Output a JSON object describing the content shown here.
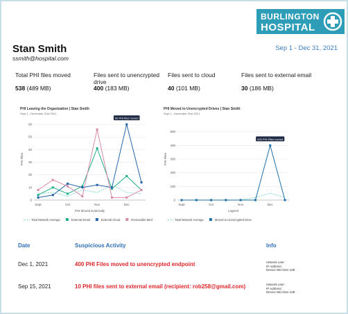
{
  "logo": {
    "line1": "BURLINGTON",
    "line2": "HOSPITAL"
  },
  "header": {
    "name": "Stan Smith",
    "email": "ssmith@hospital.com",
    "date_range": "Sep 1 - Dec 31, 2021"
  },
  "stats": [
    {
      "label": "Total PHI files moved",
      "count": 538,
      "size": "(489 MB)"
    },
    {
      "label": "Files sent to unencrypted drive",
      "count": 400,
      "size": "(183 MB)"
    },
    {
      "label": "Files sent to cloud",
      "count": 40,
      "size": "(101 MB)"
    },
    {
      "label": "Files sent to external email",
      "count": 30,
      "size": "(186 MB)"
    }
  ],
  "charts": [
    {
      "type": "line",
      "title": "PHI Leaving the Organization | Stan Smith",
      "subtitle": "Sept 1 - December 31st 2021",
      "y_label": "PHI Files",
      "x_label": "PHI Moved Externally",
      "annotation": "60 PHI files moved",
      "categories": [
        "Sept",
        null,
        "Oct",
        null,
        "Nov",
        null,
        "Dec",
        null
      ],
      "ylim": [
        0,
        65
      ],
      "yticks": [
        0,
        10,
        20,
        30,
        40,
        50,
        60
      ],
      "grid": true,
      "series": [
        {
          "name": "Total Network Average",
          "color": "#5fd3c0",
          "dashed": true,
          "values": [
            5,
            6,
            3,
            8,
            6,
            12,
            6,
            5
          ]
        },
        {
          "name": "External Email",
          "color": "#1fae8a",
          "values": [
            4,
            10,
            5,
            11,
            41,
            9,
            19,
            8
          ]
        },
        {
          "name": "External Cloud",
          "color": "#2563a8",
          "values": [
            2,
            4,
            13,
            10,
            12,
            10,
            60,
            14
          ]
        },
        {
          "name": "Removable Media",
          "color": "#d98aa8",
          "values": [
            8,
            16,
            11,
            3,
            56,
            2,
            2,
            8
          ]
        }
      ]
    },
    {
      "type": "line",
      "title": "PHI Moved to Unencrypted Drives | Stan Smith",
      "subtitle": "Sept 1 - December 31st 2021",
      "y_label": "PHI Files",
      "x_label": "Legend",
      "annotation": "400 PHI Files moved",
      "categories": [
        "Sept",
        null,
        "Oct",
        null,
        "Nov",
        null,
        "Dec",
        null
      ],
      "ylim": [
        0,
        600
      ],
      "yticks": [
        0,
        100,
        200,
        300,
        400,
        500
      ],
      "grid": true,
      "series": [
        {
          "name": "Total Network Average",
          "color": "#5fd3c0",
          "dashed": true,
          "values": [
            0,
            0,
            0,
            0,
            0,
            20,
            50,
            20
          ]
        },
        {
          "name": "Moved to Unencrypted Drive",
          "color": "#1f6fa8",
          "values": [
            0,
            0,
            0,
            0,
            0,
            0,
            400,
            0
          ]
        }
      ]
    }
  ],
  "table": {
    "columns": [
      "Date",
      "Suspicious Activity",
      "Info"
    ],
    "rows": [
      {
        "date": "Dec 1, 2021",
        "activity": "400 PHI Files moved to unencrypted endpoint",
        "info": [
          "network user:",
          "IP Address:",
          "Device Win-Dev-108"
        ]
      },
      {
        "date": "Sep 15, 2021",
        "activity": "10 PHI files sent to external email (recipient: rob258@gmail.com)",
        "info": [
          "network user:",
          "IP Address:",
          "Device Win-Dev-108"
        ]
      }
    ]
  }
}
